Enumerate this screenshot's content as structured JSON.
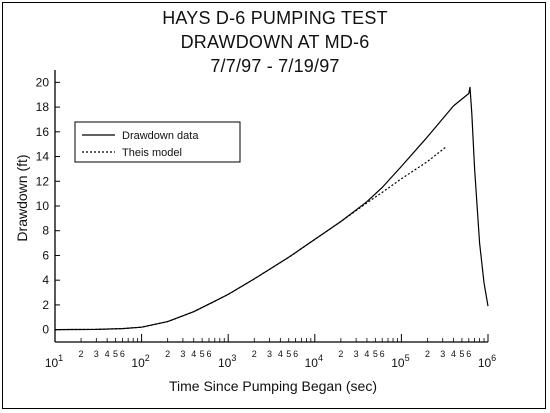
{
  "chart_data": {
    "type": "line",
    "title_lines": [
      "HAYS D-6 PUMPING TEST",
      "DRAWDOWN AT MD-6",
      "7/7/97 - 7/19/97"
    ],
    "xlabel": "Time Since Pumping Began (sec)",
    "ylabel": "Drawdown (ft)",
    "x_scale": "log",
    "xlim": [
      10,
      1000000
    ],
    "ylim": [
      -1,
      21
    ],
    "y_ticks": [
      0,
      2,
      4,
      6,
      8,
      10,
      12,
      14,
      16,
      18,
      20
    ],
    "x_major_ticks": [
      {
        "value": 10,
        "base": "10",
        "exp": "1"
      },
      {
        "value": 100,
        "base": "10",
        "exp": "2"
      },
      {
        "value": 1000,
        "base": "10",
        "exp": "3"
      },
      {
        "value": 10000,
        "base": "10",
        "exp": "4"
      },
      {
        "value": 100000,
        "base": "10",
        "exp": "5"
      },
      {
        "value": 1000000,
        "base": "10",
        "exp": "6"
      }
    ],
    "x_minor_labels": [
      "2",
      "3",
      "4",
      "5",
      "6"
    ],
    "grid": false,
    "legend_position": "upper-left",
    "series": [
      {
        "name": "Drawdown data",
        "style": "solid",
        "x": [
          10,
          30,
          60,
          100,
          200,
          400,
          700,
          1000,
          2000,
          5000,
          10000,
          20000,
          40000,
          60000,
          100000,
          200000,
          400000,
          600000,
          620000,
          650000,
          700000,
          800000,
          900000,
          1000000
        ],
        "y": [
          0,
          0.02,
          0.08,
          0.2,
          0.65,
          1.45,
          2.3,
          2.85,
          4.1,
          5.85,
          7.3,
          8.75,
          10.35,
          11.5,
          13.2,
          15.6,
          18.1,
          19.1,
          19.6,
          17.5,
          13,
          7,
          3.8,
          1.9
        ]
      },
      {
        "name": "Theis model",
        "style": "dotted",
        "x": [
          10,
          30,
          60,
          100,
          200,
          400,
          700,
          1000,
          2000,
          5000,
          10000,
          20000,
          40000,
          60000,
          100000,
          200000,
          330000
        ],
        "y": [
          0,
          0.02,
          0.08,
          0.2,
          0.65,
          1.45,
          2.3,
          2.85,
          4.1,
          5.85,
          7.3,
          8.75,
          10.25,
          11.1,
          12.2,
          13.6,
          14.8
        ]
      }
    ]
  }
}
